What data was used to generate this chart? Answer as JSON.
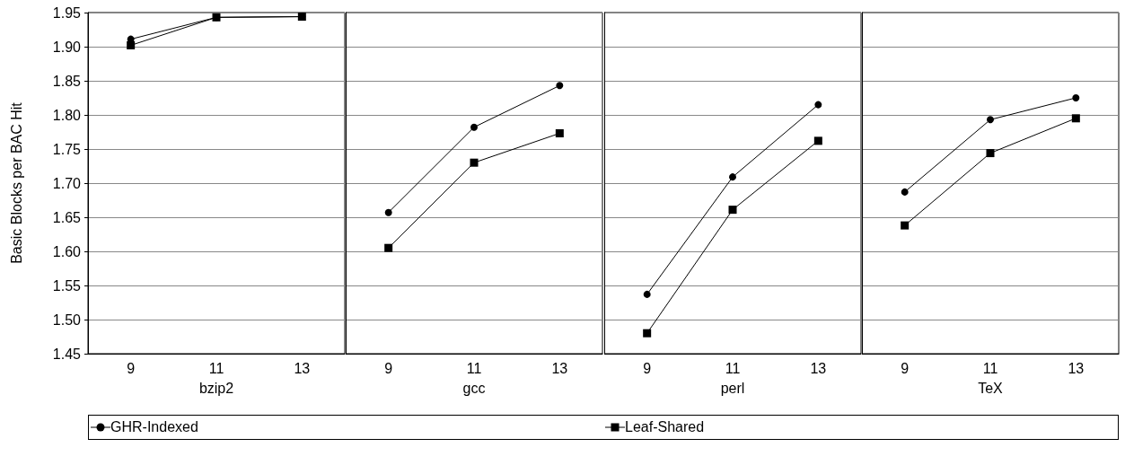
{
  "chart_data": [
    {
      "type": "line",
      "ylabel": "Basic Blocks per BAC Hit",
      "xlabel": "bzip2",
      "categories": [
        "9",
        "11",
        "13"
      ],
      "ylim": [
        1.45,
        1.95
      ],
      "yticks": [
        {
          "value": 1.45,
          "label": "1.45"
        },
        {
          "value": 1.5,
          "label": "1.50"
        },
        {
          "value": 1.55,
          "label": "1.55"
        },
        {
          "value": 1.6,
          "label": "1.60"
        },
        {
          "value": 1.65,
          "label": "1.65"
        },
        {
          "value": 1.7,
          "label": "1.70"
        },
        {
          "value": 1.75,
          "label": "1.75"
        },
        {
          "value": 1.8,
          "label": "1.80"
        },
        {
          "value": 1.85,
          "label": "1.85"
        },
        {
          "value": 1.9,
          "label": "1.90"
        },
        {
          "value": 1.95,
          "label": "1.95"
        }
      ],
      "grid": "y",
      "legend": "bottom",
      "line_style": "solid",
      "series": [
        {
          "name": "GHR-Indexed",
          "color": "#000000",
          "marker": "circle",
          "values": [
            1.911,
            1.943,
            1.944
          ]
        },
        {
          "name": "Leaf-Shared",
          "color": "#000000",
          "marker": "square",
          "values": [
            1.902,
            1.943,
            1.944
          ]
        }
      ]
    },
    {
      "type": "line",
      "xlabel": "gcc",
      "categories": [
        "9",
        "11",
        "13"
      ],
      "ylim": [
        1.45,
        1.95
      ],
      "yticks": [
        1.45,
        1.5,
        1.55,
        1.6,
        1.65,
        1.7,
        1.75,
        1.8,
        1.85,
        1.9,
        1.95
      ],
      "grid": "y",
      "tick_labels": "x",
      "line_style": "solid",
      "series": [
        {
          "color": "#000000",
          "marker": "circle",
          "values": [
            1.657,
            1.782,
            1.843
          ]
        },
        {
          "color": "#000000",
          "marker": "square",
          "values": [
            1.605,
            1.73,
            1.773
          ]
        }
      ]
    },
    {
      "type": "line",
      "xlabel": "perl",
      "categories": [
        "9",
        "11",
        "13"
      ],
      "ylim": [
        1.45,
        1.95
      ],
      "yticks": [
        1.45,
        1.5,
        1.55,
        1.6,
        1.65,
        1.7,
        1.75,
        1.8,
        1.85,
        1.9,
        1.95
      ],
      "grid": "y",
      "tick_labels": "x",
      "line_style": "solid",
      "series": [
        {
          "color": "#000000",
          "marker": "circle",
          "values": [
            1.537,
            1.709,
            1.815
          ]
        },
        {
          "color": "#000000",
          "marker": "square",
          "values": [
            1.48,
            1.661,
            1.762
          ]
        }
      ]
    },
    {
      "type": "line",
      "xlabel": "TeX",
      "categories": [
        "9",
        "11",
        "13"
      ],
      "ylim": [
        1.45,
        1.95
      ],
      "yticks": [
        1.45,
        1.5,
        1.55,
        1.6,
        1.65,
        1.7,
        1.75,
        1.8,
        1.85,
        1.9,
        1.95
      ],
      "grid": "y",
      "tick_labels": "x",
      "line_style": "solid",
      "series": [
        {
          "color": "#000000",
          "marker": "circle",
          "values": [
            1.687,
            1.793,
            1.825
          ]
        },
        {
          "color": "#000000",
          "marker": "square",
          "values": [
            1.638,
            1.744,
            1.795
          ]
        }
      ]
    }
  ]
}
